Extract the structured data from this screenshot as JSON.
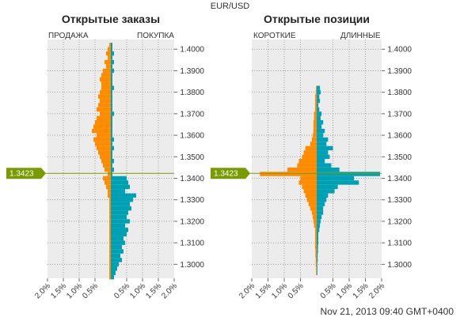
{
  "header": {
    "pair": "EUR/USD"
  },
  "timestamp": "Nov 21, 2013 09:40 GMT+0400",
  "price_marker": "1.3423",
  "colors": {
    "short": "#ff8c00",
    "long": "#00a0b4",
    "panel": "#ececec",
    "current": "#7a9a01"
  },
  "chart_data": [
    {
      "type": "bar",
      "title": "Открытые заказы",
      "left_label": "ПРОДАЖА",
      "right_label": "ПОКУПКА",
      "price_ticks": [
        "1.4000",
        "1.3900",
        "1.3800",
        "1.3700",
        "1.3600",
        "1.3500",
        "1.3400",
        "1.3300",
        "1.3200",
        "1.3100",
        "1.3000"
      ],
      "x_ticks": [
        "2.0%",
        "1.5%",
        "1.0%",
        "0.5%",
        "0.5%",
        "1.0%",
        "1.5%",
        "2.0%"
      ],
      "xlim": [
        -2.0,
        2.0
      ],
      "ylim": [
        1.2935,
        1.4045
      ],
      "current_price": 1.3423,
      "price": [
        1.402,
        1.4,
        1.398,
        1.396,
        1.394,
        1.392,
        1.39,
        1.388,
        1.386,
        1.384,
        1.382,
        1.38,
        1.378,
        1.376,
        1.374,
        1.372,
        1.37,
        1.368,
        1.366,
        1.364,
        1.362,
        1.36,
        1.358,
        1.356,
        1.354,
        1.352,
        1.35,
        1.348,
        1.346,
        1.344,
        1.342,
        1.34,
        1.338,
        1.336,
        1.334,
        1.332,
        1.33,
        1.328,
        1.326,
        1.324,
        1.322,
        1.32,
        1.318,
        1.316,
        1.314,
        1.312,
        1.31,
        1.308,
        1.306,
        1.304,
        1.302,
        1.3,
        1.298,
        1.296,
        1.294
      ],
      "series": [
        {
          "name": "ПРОДАЖА",
          "values": [
            0.05,
            0.1,
            0.15,
            0.1,
            0.2,
            0.15,
            0.25,
            0.3,
            0.35,
            0.3,
            0.3,
            0.35,
            0.4,
            0.35,
            0.4,
            0.45,
            0.35,
            0.45,
            0.5,
            0.55,
            0.6,
            0.45,
            0.55,
            0.5,
            0.45,
            0.4,
            0.35,
            0.3,
            0.25,
            0.2,
            0.1,
            0.25,
            0.2,
            0.15,
            0.1,
            0.1,
            0.05,
            0.05,
            0.05,
            0.05,
            0.05,
            0.05,
            0.05,
            0.05,
            0.05,
            0.05,
            0.05,
            0.05,
            0.05,
            0.05,
            0.05,
            0.05,
            0.05,
            0.05,
            0.05
          ]
        },
        {
          "name": "ПОКУПКА",
          "values": [
            0.05,
            0.05,
            0.1,
            0.05,
            0.1,
            0.05,
            0.1,
            0.05,
            0.05,
            0.05,
            0.1,
            0.05,
            0.05,
            0.05,
            0.05,
            0.05,
            0.1,
            0.05,
            0.05,
            0.05,
            0.05,
            0.05,
            0.1,
            0.05,
            0.1,
            0.05,
            0.05,
            0.1,
            0.05,
            0.1,
            0.05,
            0.5,
            0.55,
            0.6,
            0.45,
            0.8,
            0.7,
            0.6,
            0.65,
            0.55,
            0.5,
            0.6,
            0.45,
            0.55,
            0.5,
            0.4,
            0.45,
            0.35,
            0.4,
            0.3,
            0.35,
            0.25,
            0.2,
            0.15,
            0.1
          ]
        }
      ]
    },
    {
      "type": "bar",
      "title": "Открытые позиции",
      "left_label": "КОРОТКИЕ",
      "right_label": "ДЛИННЫЕ",
      "price_ticks": [
        "1.4000",
        "1.3900",
        "1.3800",
        "1.3700",
        "1.3600",
        "1.3500",
        "1.3400",
        "1.3300",
        "1.3200",
        "1.3100",
        "1.3000"
      ],
      "x_ticks": [
        "2.0%",
        "1.5%",
        "1.0%",
        "0.5%",
        "0.5%",
        "1.0%",
        "1.5%",
        "2.0%"
      ],
      "xlim": [
        -2.0,
        2.0
      ],
      "ylim": [
        1.2935,
        1.4045
      ],
      "current_price": 1.3423,
      "price": [
        1.382,
        1.38,
        1.378,
        1.376,
        1.374,
        1.372,
        1.37,
        1.368,
        1.366,
        1.364,
        1.362,
        1.36,
        1.358,
        1.356,
        1.354,
        1.352,
        1.35,
        1.348,
        1.346,
        1.344,
        1.342,
        1.34,
        1.338,
        1.336,
        1.334,
        1.332,
        1.33,
        1.328,
        1.326,
        1.324,
        1.322,
        1.32,
        1.318,
        1.316,
        1.314,
        1.312,
        1.31,
        1.308,
        1.306,
        1.304,
        1.302,
        1.3,
        1.298,
        1.296
      ],
      "series": [
        {
          "name": "КОРОТКИЕ",
          "values": [
            0.02,
            0.03,
            0.05,
            0.05,
            0.05,
            0.05,
            0.08,
            0.08,
            0.1,
            0.1,
            0.1,
            0.12,
            0.15,
            0.2,
            0.35,
            0.4,
            0.45,
            0.55,
            0.6,
            0.9,
            1.75,
            0.5,
            0.55,
            0.45,
            0.4,
            0.35,
            0.3,
            0.25,
            0.2,
            0.15,
            0.12,
            0.1,
            0.08,
            0.05,
            0.05,
            0.05,
            0.05,
            0.05,
            0.04,
            0.04,
            0.03,
            0.03,
            0.02,
            0.02
          ]
        },
        {
          "name": "ДЛИННЫЕ",
          "values": [
            0.1,
            0.12,
            0.08,
            0.1,
            0.05,
            0.08,
            0.15,
            0.12,
            0.2,
            0.15,
            0.25,
            0.2,
            0.35,
            0.3,
            0.5,
            0.35,
            0.4,
            0.25,
            0.45,
            0.7,
            1.95,
            1.15,
            1.3,
            0.65,
            0.55,
            0.35,
            0.3,
            0.25,
            0.2,
            0.2,
            0.15,
            0.12,
            0.1,
            0.08,
            0.05,
            0.05,
            0.05,
            0.04,
            0.04,
            0.03,
            0.03,
            0.02,
            0.02,
            0.02
          ]
        }
      ]
    }
  ]
}
